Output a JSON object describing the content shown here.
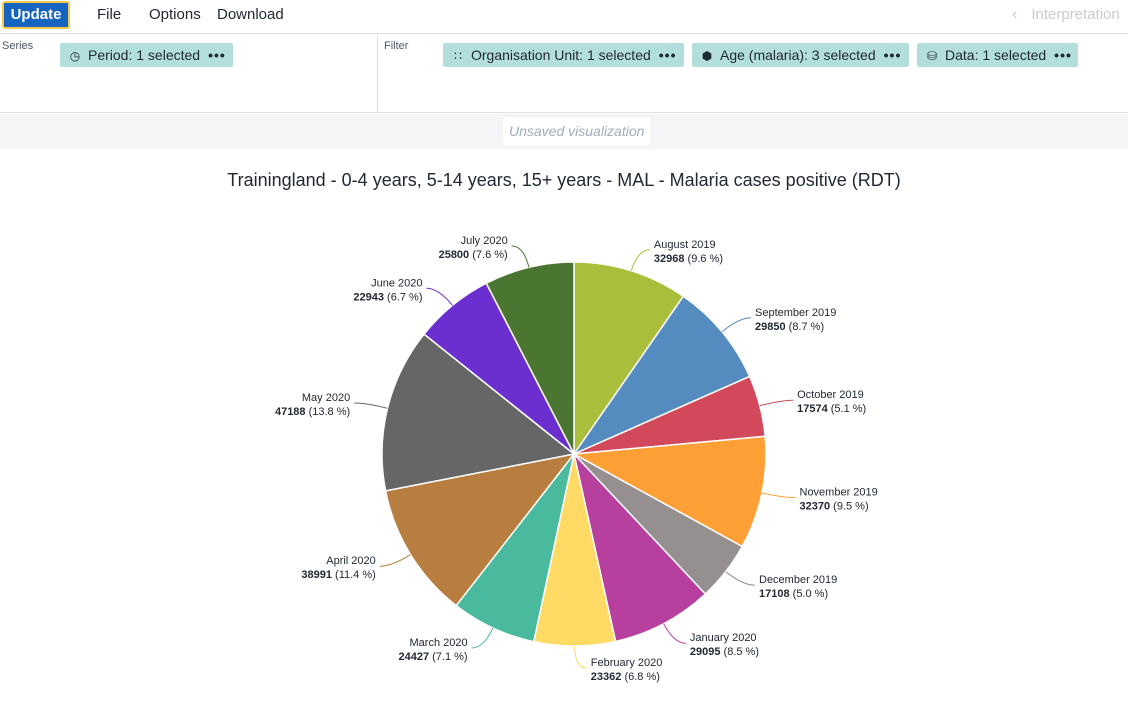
{
  "menubar": {
    "update_label": "Update",
    "file_label": "File",
    "options_label": "Options",
    "download_label": "Download",
    "interpretations_label": "Interpretation"
  },
  "layout": {
    "series_label": "Series",
    "filter_label": "Filter",
    "chips": {
      "period": {
        "label": "Period: 1 selected",
        "icon": "clock-icon"
      },
      "orgunit": {
        "label": "Organisation Unit: 1 selected",
        "icon": "orgunit-tree-icon"
      },
      "age": {
        "label": "Age (malaria): 3 selected",
        "icon": "dimension-icon"
      },
      "data": {
        "label": "Data: 1 selected",
        "icon": "database-icon"
      }
    }
  },
  "status": {
    "unsaved": "Unsaved visualization"
  },
  "chart_data": {
    "type": "pie",
    "title": "Trainingland - 0-4 years, 5-14 years, 15+ years - MAL - Malaria cases positive (RDT)",
    "slices": [
      {
        "name": "August 2019",
        "value": 32968,
        "pct": "9.6 %",
        "color": "#a9be3b"
      },
      {
        "name": "September 2019",
        "value": 29850,
        "pct": "8.7 %",
        "color": "#558cc0"
      },
      {
        "name": "October 2019",
        "value": 17574,
        "pct": "5.1 %",
        "color": "#d1495b"
      },
      {
        "name": "November 2019",
        "value": 32370,
        "pct": "9.5 %",
        "color": "#ffa037"
      },
      {
        "name": "December 2019",
        "value": 17108,
        "pct": "5.0 %",
        "color": "#968f8f"
      },
      {
        "name": "January 2020",
        "value": 29095,
        "pct": "8.5 %",
        "color": "#b7409f"
      },
      {
        "name": "February 2020",
        "value": 23362,
        "pct": "6.8 %",
        "color": "#ffda64"
      },
      {
        "name": "March 2020",
        "value": 24427,
        "pct": "7.1 %",
        "color": "#4aba9f"
      },
      {
        "name": "April 2020",
        "value": 38991,
        "pct": "11.4 %",
        "color": "#b77e40"
      },
      {
        "name": "May 2020",
        "value": 47188,
        "pct": "13.8 %",
        "color": "#666666"
      },
      {
        "name": "June 2020",
        "value": 22943,
        "pct": "6.7 %",
        "color": "#6b2fd0"
      },
      {
        "name": "July 2020",
        "value": 25800,
        "pct": "7.6 %",
        "color": "#4b7631"
      }
    ]
  }
}
